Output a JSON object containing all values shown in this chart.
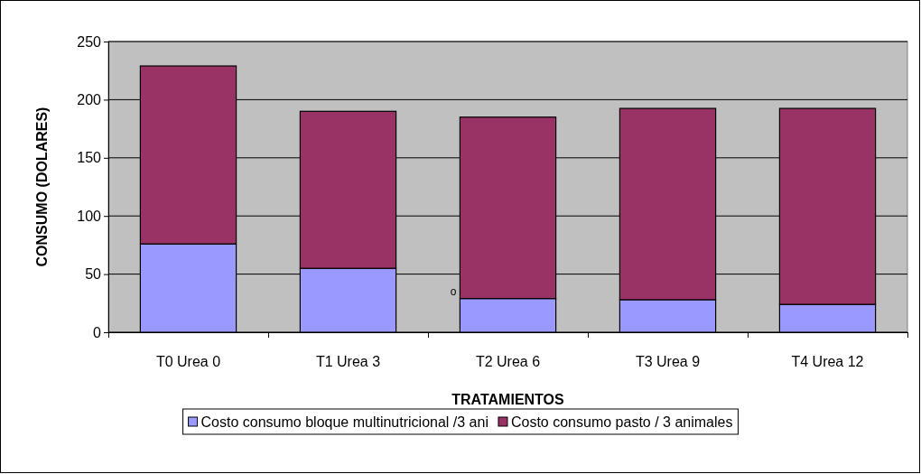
{
  "chart_data": {
    "type": "bar",
    "stacked": true,
    "xlabel": "TRATAMIENTOS",
    "ylabel": "CONSUMO (DOLARES)",
    "categories": [
      "T0 Urea 0",
      "T1 Urea 3",
      "T2 Urea 6",
      "T3 Urea 9",
      "T4 Urea 12"
    ],
    "series": [
      {
        "name": "Costo consumo bloque multinutricional /3 ani",
        "color": "#9999ff",
        "values": [
          76,
          55,
          29,
          28,
          24
        ]
      },
      {
        "name": "Costo consumo pasto / 3 animales",
        "color": "#993366",
        "values": [
          153,
          135,
          156,
          164.5,
          168.5
        ]
      }
    ],
    "ylim": [
      0,
      250
    ],
    "yticks": [
      0,
      50,
      100,
      150,
      200,
      250
    ],
    "grid": "y",
    "legend": "bottom",
    "annotations": [
      "o"
    ]
  }
}
